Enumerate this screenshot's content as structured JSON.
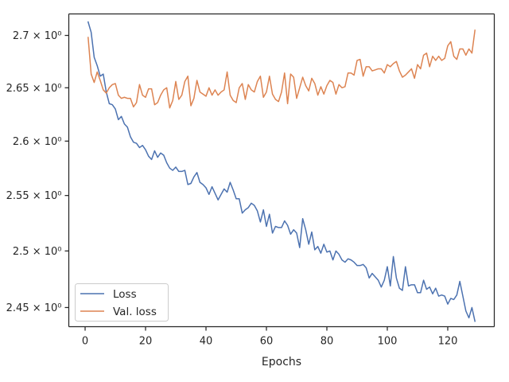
{
  "chart_data": {
    "type": "line",
    "title": "",
    "xlabel": "Epochs",
    "ylabel": "",
    "yscale": "log",
    "xlim": [
      -5.4,
      135.4
    ],
    "ylim": [
      2.4333,
      2.7208
    ],
    "x_ticks": [
      0,
      20,
      40,
      60,
      80,
      100,
      120
    ],
    "y_ticks": [
      2.45,
      2.5,
      2.55,
      2.6,
      2.65,
      2.7
    ],
    "y_tick_labels": [
      "2.45 × 10⁰",
      "2.5 × 10⁰",
      "2.55 × 10⁰",
      "2.6 × 10⁰",
      "2.65 × 10⁰",
      "2.7 × 10⁰"
    ],
    "grid": false,
    "legend_position": "lower-left",
    "colors": {
      "loss": "#4c72b0",
      "val_loss": "#dd8452",
      "axis": "#262626"
    },
    "x": [
      1,
      2,
      3,
      4,
      5,
      6,
      7,
      8,
      9,
      10,
      11,
      12,
      13,
      14,
      15,
      16,
      17,
      18,
      19,
      20,
      21,
      22,
      23,
      24,
      25,
      26,
      27,
      28,
      29,
      30,
      31,
      32,
      33,
      34,
      35,
      36,
      37,
      38,
      39,
      40,
      41,
      42,
      43,
      44,
      45,
      46,
      47,
      48,
      49,
      50,
      51,
      52,
      53,
      54,
      55,
      56,
      57,
      58,
      59,
      60,
      61,
      62,
      63,
      64,
      65,
      66,
      67,
      68,
      69,
      70,
      71,
      72,
      73,
      74,
      75,
      76,
      77,
      78,
      79,
      80,
      81,
      82,
      83,
      84,
      85,
      86,
      87,
      88,
      89,
      90,
      91,
      92,
      93,
      94,
      95,
      96,
      97,
      98,
      99,
      100,
      101,
      102,
      103,
      104,
      105,
      106,
      107,
      108,
      109,
      110,
      111,
      112,
      113,
      114,
      115,
      116,
      117,
      118,
      119,
      120,
      121,
      122,
      123,
      124,
      125,
      126,
      127,
      128,
      129
    ],
    "series": [
      {
        "name": "Loss",
        "values": [
          2.713,
          2.703,
          2.679,
          2.671,
          2.661,
          2.663,
          2.646,
          2.635,
          2.634,
          2.63,
          2.62,
          2.623,
          2.616,
          2.613,
          2.604,
          2.599,
          2.598,
          2.594,
          2.596,
          2.592,
          2.586,
          2.583,
          2.591,
          2.585,
          2.589,
          2.587,
          2.58,
          2.575,
          2.573,
          2.576,
          2.572,
          2.572,
          2.573,
          2.56,
          2.561,
          2.567,
          2.571,
          2.562,
          2.56,
          2.557,
          2.551,
          2.558,
          2.552,
          2.546,
          2.551,
          2.556,
          2.553,
          2.562,
          2.555,
          2.547,
          2.547,
          2.534,
          2.537,
          2.539,
          2.543,
          2.541,
          2.536,
          2.526,
          2.537,
          2.522,
          2.533,
          2.516,
          2.522,
          2.521,
          2.521,
          2.527,
          2.523,
          2.515,
          2.519,
          2.516,
          2.503,
          2.529,
          2.519,
          2.506,
          2.517,
          2.501,
          2.504,
          2.498,
          2.506,
          2.499,
          2.5,
          2.492,
          2.5,
          2.497,
          2.492,
          2.49,
          2.493,
          2.492,
          2.49,
          2.487,
          2.487,
          2.488,
          2.485,
          2.476,
          2.48,
          2.477,
          2.474,
          2.468,
          2.474,
          2.486,
          2.469,
          2.495,
          2.476,
          2.467,
          2.465,
          2.486,
          2.469,
          2.47,
          2.47,
          2.463,
          2.463,
          2.474,
          2.466,
          2.468,
          2.462,
          2.467,
          2.46,
          2.461,
          2.46,
          2.453,
          2.458,
          2.457,
          2.461,
          2.473,
          2.46,
          2.447,
          2.441,
          2.45,
          2.438
        ]
      },
      {
        "name": "Val. loss",
        "values": [
          2.698,
          2.663,
          2.655,
          2.665,
          2.657,
          2.648,
          2.645,
          2.65,
          2.653,
          2.654,
          2.643,
          2.64,
          2.641,
          2.64,
          2.64,
          2.632,
          2.636,
          2.653,
          2.643,
          2.641,
          2.649,
          2.649,
          2.634,
          2.636,
          2.643,
          2.648,
          2.65,
          2.631,
          2.638,
          2.656,
          2.639,
          2.643,
          2.656,
          2.661,
          2.633,
          2.64,
          2.657,
          2.646,
          2.644,
          2.642,
          2.65,
          2.643,
          2.648,
          2.643,
          2.646,
          2.648,
          2.665,
          2.643,
          2.638,
          2.636,
          2.65,
          2.654,
          2.639,
          2.653,
          2.648,
          2.646,
          2.656,
          2.661,
          2.641,
          2.646,
          2.661,
          2.644,
          2.639,
          2.637,
          2.646,
          2.664,
          2.635,
          2.663,
          2.66,
          2.64,
          2.65,
          2.66,
          2.652,
          2.647,
          2.659,
          2.654,
          2.643,
          2.651,
          2.644,
          2.652,
          2.657,
          2.655,
          2.644,
          2.653,
          2.65,
          2.651,
          2.664,
          2.664,
          2.662,
          2.676,
          2.677,
          2.661,
          2.67,
          2.67,
          2.666,
          2.667,
          2.668,
          2.668,
          2.664,
          2.672,
          2.67,
          2.673,
          2.675,
          2.666,
          2.66,
          2.662,
          2.665,
          2.668,
          2.659,
          2.672,
          2.668,
          2.681,
          2.683,
          2.67,
          2.68,
          2.676,
          2.68,
          2.676,
          2.678,
          2.69,
          2.694,
          2.68,
          2.677,
          2.687,
          2.687,
          2.681,
          2.687,
          2.683,
          2.705
        ]
      }
    ]
  }
}
